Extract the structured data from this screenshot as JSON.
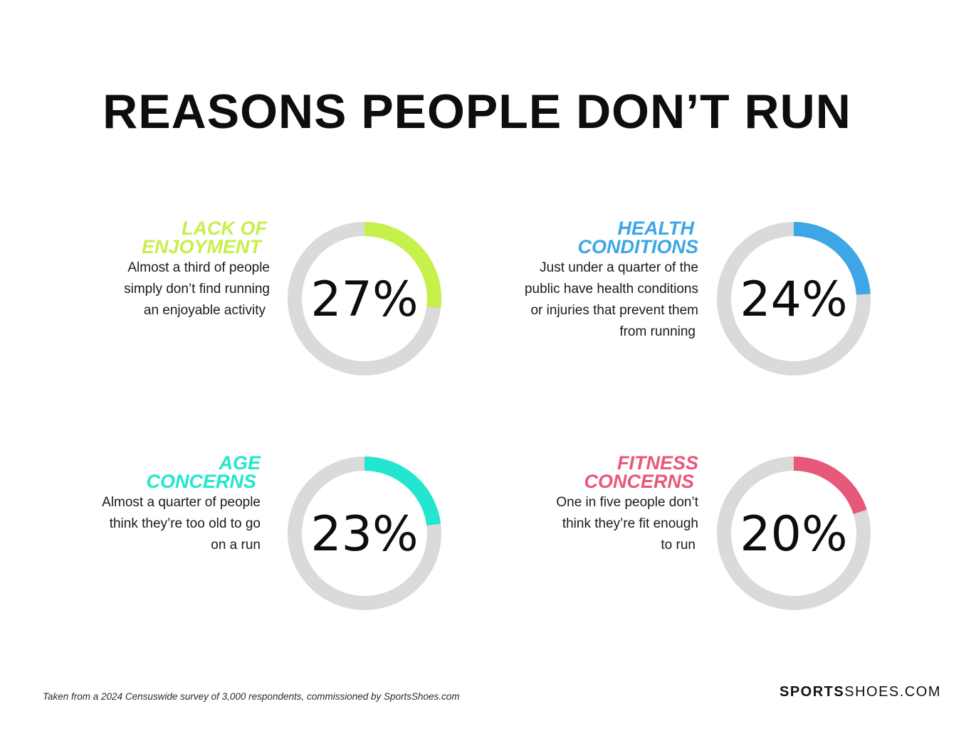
{
  "title": "REASONS PEOPLE DON’T RUN",
  "colors": {
    "track": "#dadada",
    "lime": "#c6f04a",
    "blue": "#3ea6e6",
    "teal": "#22e6cf",
    "pink": "#e8587a"
  },
  "chart_data": [
    {
      "type": "pie",
      "heading": [
        "LACK OF",
        "ENJOYMENT"
      ],
      "description": [
        "Almost a third of people",
        "simply don’t find running",
        "an enjoyable activity"
      ],
      "value": 27,
      "label": "27%",
      "color": "#c6f04a"
    },
    {
      "type": "pie",
      "heading": [
        "HEALTH",
        "CONDITIONS"
      ],
      "description": [
        "Just under a quarter of the",
        "public have health conditions",
        "or injuries that prevent them",
        "from running"
      ],
      "value": 24,
      "label": "24%",
      "color": "#3ea6e6"
    },
    {
      "type": "pie",
      "heading": [
        "AGE",
        "CONCERNS"
      ],
      "description": [
        "Almost a quarter of people",
        "think they’re too old to go",
        "on a run"
      ],
      "value": 23,
      "label": "23%",
      "color": "#22e6cf"
    },
    {
      "type": "pie",
      "heading": [
        "FITNESS",
        "CONCERNS"
      ],
      "description": [
        "One in five people don’t",
        "think they’re fit enough",
        "to run"
      ],
      "value": 20,
      "label": "20%",
      "color": "#e8587a"
    }
  ],
  "footnote": "Taken from a 2024 Censuswide survey of 3,000 respondents, commissioned by SportsShoes.com",
  "brand": {
    "part1": "SPORTS",
    "part2": "SHOES.COM"
  }
}
